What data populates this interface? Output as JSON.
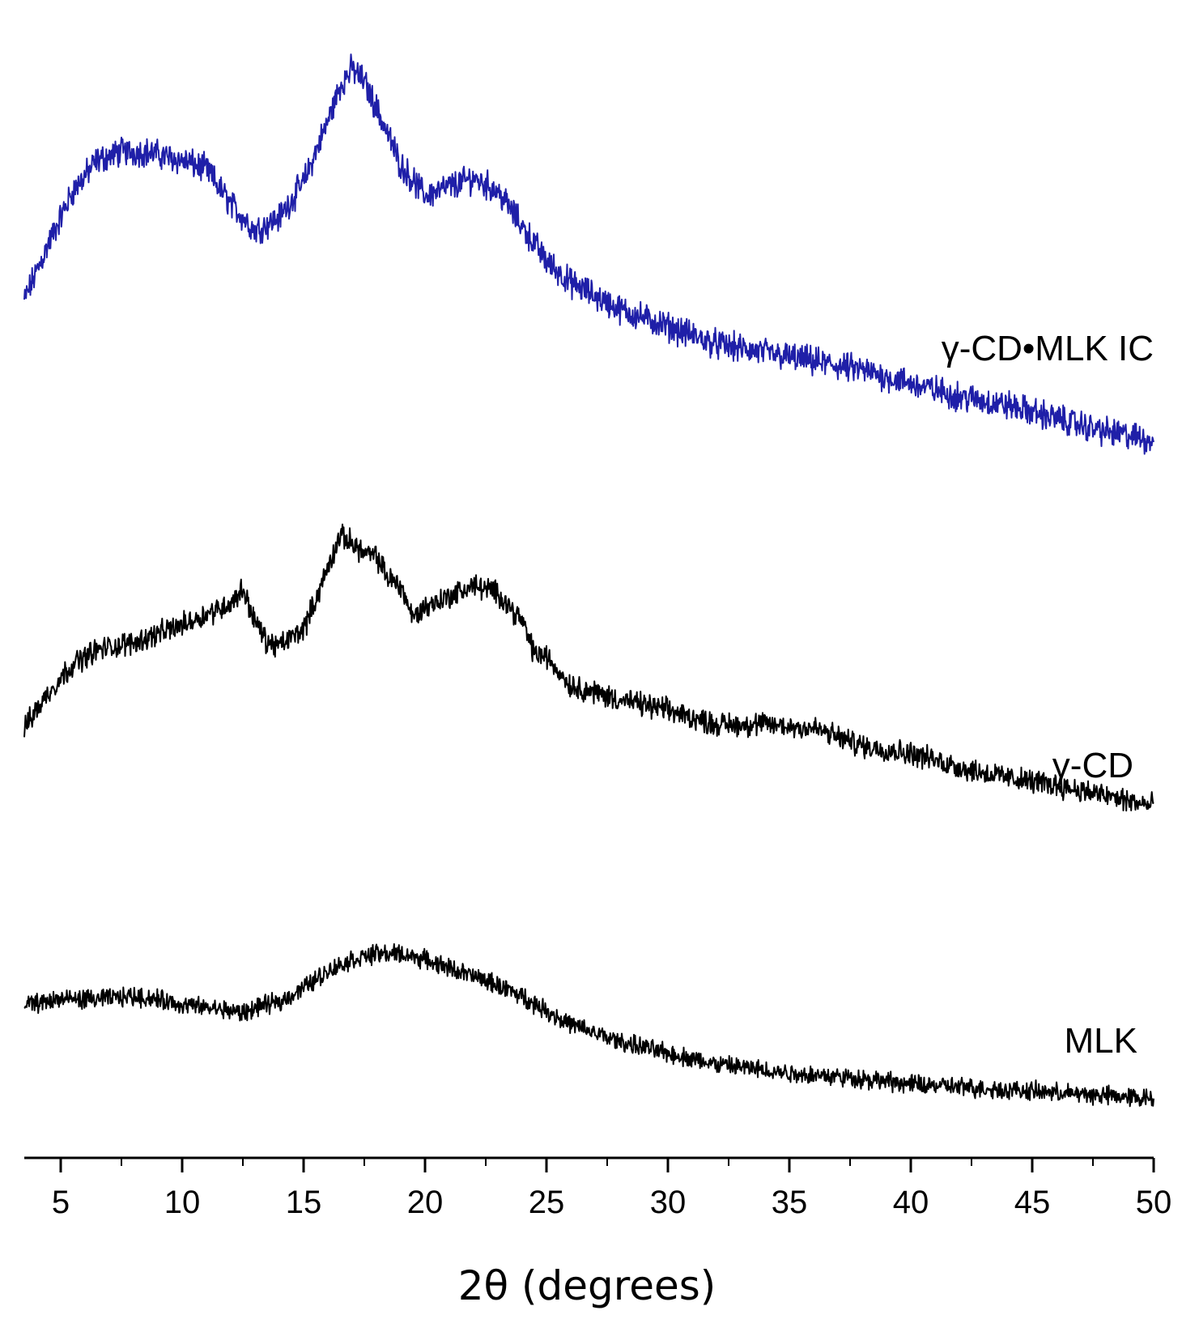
{
  "colors": {
    "background": "#ffffff",
    "axis": "#000000",
    "ic_trace": "#1f1fa8",
    "cd_trace": "#000000",
    "mlk_trace": "#000000"
  },
  "chart_data": {
    "type": "line",
    "title": "",
    "xlabel": "2θ (degrees)",
    "ylabel": "",
    "xlim": [
      3.5,
      50
    ],
    "x_ticks_major": [
      5,
      10,
      15,
      20,
      25,
      30,
      35,
      40,
      45,
      50
    ],
    "x_ticks_minor_step": 2.5,
    "x_tick_labels": [
      "5",
      "10",
      "15",
      "20",
      "25",
      "30",
      "35",
      "40",
      "45",
      "50"
    ],
    "y_axis_shown": false,
    "grid": false,
    "legend": "none",
    "series": [
      {
        "name": "γ-CD•MLK IC",
        "color": "#1f1fa8",
        "x": [
          3.5,
          4.5,
          5.5,
          6.5,
          7.5,
          8.5,
          10,
          11,
          12,
          13,
          14,
          15,
          16,
          16.5,
          17,
          17.5,
          18,
          19,
          20,
          21,
          22,
          23,
          24,
          25,
          26,
          28,
          30,
          32,
          35,
          38,
          40,
          42,
          44,
          46,
          48,
          50
        ],
        "y": [
          0.35,
          0.48,
          0.6,
          0.67,
          0.69,
          0.69,
          0.67,
          0.65,
          0.57,
          0.51,
          0.54,
          0.62,
          0.76,
          0.84,
          0.88,
          0.85,
          0.79,
          0.66,
          0.59,
          0.61,
          0.63,
          0.6,
          0.52,
          0.44,
          0.39,
          0.33,
          0.29,
          0.25,
          0.22,
          0.19,
          0.16,
          0.13,
          0.11,
          0.08,
          0.05,
          0.03
        ]
      },
      {
        "name": "γ-CD",
        "color": "#000000",
        "x": [
          3.5,
          4.5,
          5.5,
          6.5,
          8,
          10,
          11,
          12,
          12.5,
          13,
          13.5,
          14,
          15,
          15.5,
          16,
          16.5,
          17,
          17.5,
          18,
          18.5,
          19,
          19.5,
          20,
          21,
          22,
          23,
          24,
          24.5,
          25,
          26,
          28,
          30,
          32,
          34,
          36,
          38,
          40,
          42,
          44,
          46,
          48,
          50
        ],
        "y": [
          0.32,
          0.42,
          0.5,
          0.54,
          0.56,
          0.61,
          0.64,
          0.67,
          0.71,
          0.62,
          0.56,
          0.55,
          0.6,
          0.68,
          0.77,
          0.86,
          0.84,
          0.81,
          0.8,
          0.74,
          0.72,
          0.63,
          0.66,
          0.69,
          0.72,
          0.7,
          0.62,
          0.53,
          0.52,
          0.44,
          0.4,
          0.37,
          0.33,
          0.33,
          0.32,
          0.27,
          0.25,
          0.21,
          0.18,
          0.16,
          0.13,
          0.1
        ]
      },
      {
        "name": "MLK",
        "color": "#000000",
        "x": [
          3.5,
          5,
          6.5,
          8,
          9,
          10,
          11,
          12,
          12.5,
          13,
          14,
          15,
          16,
          17,
          18,
          19,
          20,
          21,
          22,
          23,
          24,
          25,
          26,
          28,
          30,
          32,
          35,
          38,
          40,
          42,
          44,
          46,
          48,
          50
        ],
        "y": [
          0.34,
          0.36,
          0.36,
          0.37,
          0.36,
          0.34,
          0.33,
          0.32,
          0.31,
          0.33,
          0.35,
          0.4,
          0.46,
          0.5,
          0.52,
          0.52,
          0.5,
          0.47,
          0.44,
          0.41,
          0.37,
          0.32,
          0.27,
          0.21,
          0.17,
          0.13,
          0.1,
          0.08,
          0.06,
          0.05,
          0.04,
          0.03,
          0.02,
          0.01
        ]
      }
    ]
  }
}
